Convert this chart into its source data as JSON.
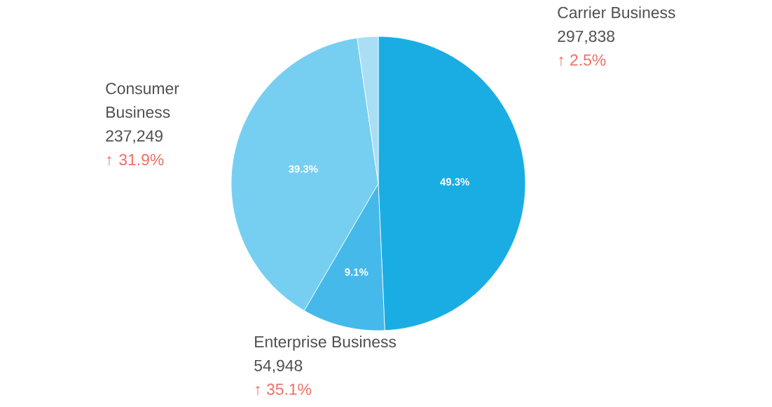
{
  "chart_data": {
    "type": "pie",
    "categories": [
      "Carrier Business",
      "Enterprise Business",
      "Consumer Business",
      null
    ],
    "values": [
      49.3,
      9.1,
      39.3,
      2.3
    ],
    "colors": [
      "#1aade4",
      "#45b9e9",
      "#76cff0",
      "#a9def5"
    ],
    "value_labels": [
      "49.3%",
      "9.1%",
      "39.3%",
      null
    ],
    "annotations": [
      {
        "text": "297,838",
        "x": "Carrier Business"
      },
      {
        "text": "↑ 2.5%",
        "x": "Carrier Business"
      },
      {
        "text": "54,948",
        "x": "Enterprise Business"
      },
      {
        "text": "↑ 35.1%",
        "x": "Enterprise Business"
      },
      {
        "text": "237,249",
        "x": "Consumer Business"
      },
      {
        "text": "↑ 31.9%",
        "x": "Consumer Business"
      }
    ]
  }
}
